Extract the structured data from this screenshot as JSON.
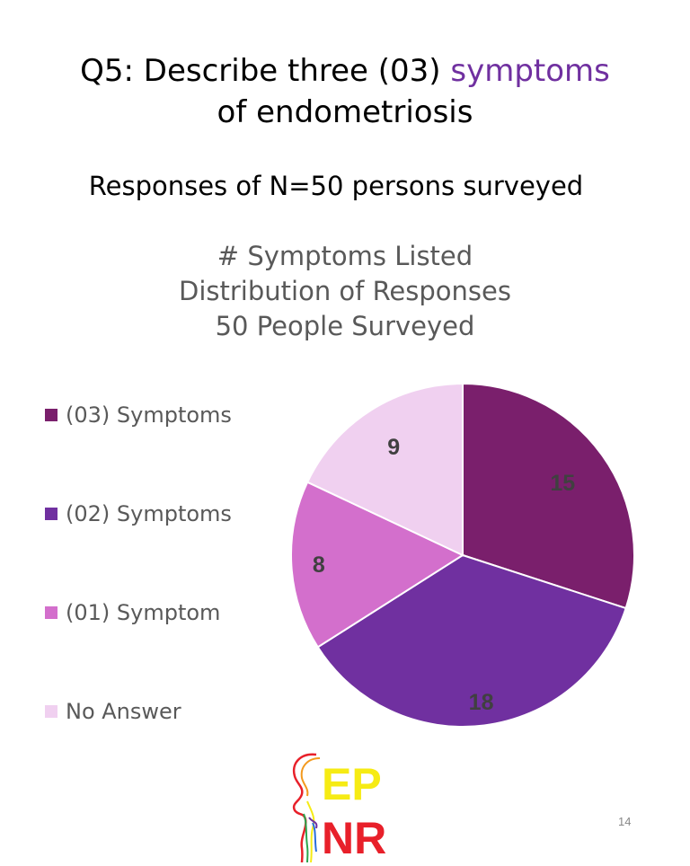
{
  "slide": {
    "title_part1": "Q5: Describe three (03) ",
    "title_accent": "symptoms",
    "title_line2": "of endometriosis",
    "subtitle": "Responses of N=50 persons surveyed",
    "page_number": "14",
    "accent_color": "#7030a0"
  },
  "logo": {
    "text_line1": "EP",
    "text_line2": "NR",
    "text_color_1": "#f6eb14",
    "text_color_2": "#e8202a",
    "icon": "rainbow-person-silhouette-icon"
  },
  "chart_data": {
    "type": "pie",
    "title_lines": [
      "# Symptoms Listed",
      "Distribution of Responses",
      "50 People Surveyed"
    ],
    "categories": [
      "(03) Symptoms",
      "(02) Symptoms",
      "(01) Symptom",
      "No Answer"
    ],
    "values": [
      15,
      18,
      8,
      9
    ],
    "colors": [
      "#7a1f6c",
      "#7030a0",
      "#d36fcc",
      "#f0d0f0"
    ],
    "legend_position": "left",
    "start_angle": "12 o'clock",
    "direction": "clockwise",
    "data_labels": true
  }
}
